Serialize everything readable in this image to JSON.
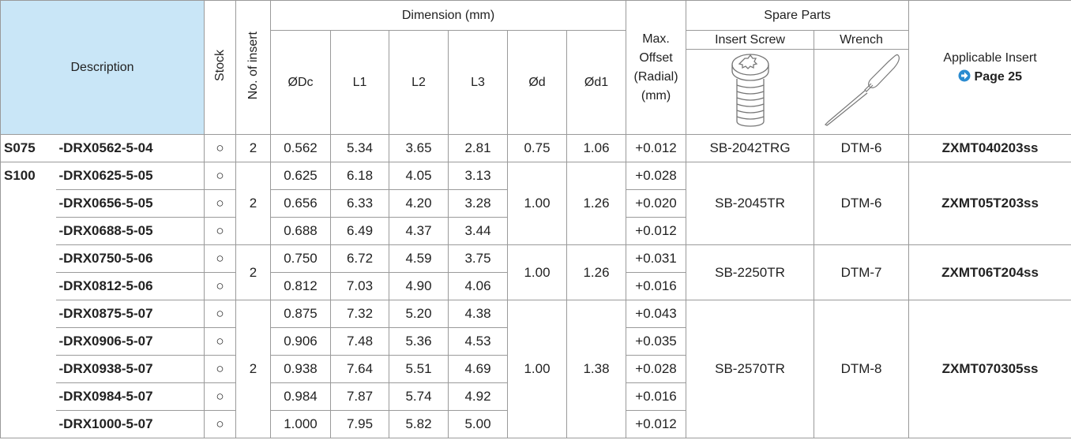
{
  "header": {
    "description": "Description",
    "stock": "Stock",
    "inserts": "No. of insert",
    "dimension": "Dimension (mm)",
    "dc": "ØDc",
    "l1": "L1",
    "l2": "L2",
    "l3": "L3",
    "d": "Ød",
    "d1": "Ød1",
    "offset": [
      "Max.",
      "Offset",
      "(Radial)",
      "(mm)"
    ],
    "spare": "Spare Parts",
    "screw": "Insert Screw",
    "wrench": "Wrench",
    "applicable": "Applicable Insert",
    "page": "Page 25"
  },
  "sections": [
    {
      "prefix": "S075",
      "groups": [
        {
          "inserts": "2",
          "d": "0.75",
          "d1": "1.06",
          "screw": "SB-2042TRG",
          "wrench": "DTM-6",
          "insert": "ZXMT040203ss",
          "items": [
            {
              "description": "-DRX0562-5-04",
              "stock": "○",
              "dc": "0.562",
              "l1": "5.34",
              "l2": "3.65",
              "l3": "2.81",
              "offset": "+0.012"
            }
          ]
        }
      ]
    },
    {
      "prefix": "S100",
      "groups": [
        {
          "inserts": "2",
          "d": "1.00",
          "d1": "1.26",
          "screw": "SB-2045TR",
          "wrench": "DTM-6",
          "insert": "ZXMT05T203ss",
          "items": [
            {
              "description": "-DRX0625-5-05",
              "stock": "○",
              "dc": "0.625",
              "l1": "6.18",
              "l2": "4.05",
              "l3": "3.13",
              "offset": "+0.028"
            },
            {
              "description": "-DRX0656-5-05",
              "stock": "○",
              "dc": "0.656",
              "l1": "6.33",
              "l2": "4.20",
              "l3": "3.28",
              "offset": "+0.020"
            },
            {
              "description": "-DRX0688-5-05",
              "stock": "○",
              "dc": "0.688",
              "l1": "6.49",
              "l2": "4.37",
              "l3": "3.44",
              "offset": "+0.012"
            }
          ]
        },
        {
          "inserts": "2",
          "d": "1.00",
          "d1": "1.26",
          "screw": "SB-2250TR",
          "wrench": "DTM-7",
          "insert": "ZXMT06T204ss",
          "items": [
            {
              "description": "-DRX0750-5-06",
              "stock": "○",
              "dc": "0.750",
              "l1": "6.72",
              "l2": "4.59",
              "l3": "3.75",
              "offset": "+0.031"
            },
            {
              "description": "-DRX0812-5-06",
              "stock": "○",
              "dc": "0.812",
              "l1": "7.03",
              "l2": "4.90",
              "l3": "4.06",
              "offset": "+0.016"
            }
          ]
        },
        {
          "inserts": "2",
          "d": "1.00",
          "d1": "1.38",
          "screw": "SB-2570TR",
          "wrench": "DTM-8",
          "insert": "ZXMT070305ss",
          "items": [
            {
              "description": "-DRX0875-5-07",
              "stock": "○",
              "dc": "0.875",
              "l1": "7.32",
              "l2": "5.20",
              "l3": "4.38",
              "offset": "+0.043"
            },
            {
              "description": "-DRX0906-5-07",
              "stock": "○",
              "dc": "0.906",
              "l1": "7.48",
              "l2": "5.36",
              "l3": "4.53",
              "offset": "+0.035"
            },
            {
              "description": "-DRX0938-5-07",
              "stock": "○",
              "dc": "0.938",
              "l1": "7.64",
              "l2": "5.51",
              "l3": "4.69",
              "offset": "+0.028"
            },
            {
              "description": "-DRX0984-5-07",
              "stock": "○",
              "dc": "0.984",
              "l1": "7.87",
              "l2": "5.74",
              "l3": "4.92",
              "offset": "+0.016"
            },
            {
              "description": "-DRX1000-5-07",
              "stock": "○",
              "dc": "1.000",
              "l1": "7.95",
              "l2": "5.82",
              "l3": "5.00",
              "offset": "+0.012"
            }
          ]
        }
      ]
    }
  ]
}
